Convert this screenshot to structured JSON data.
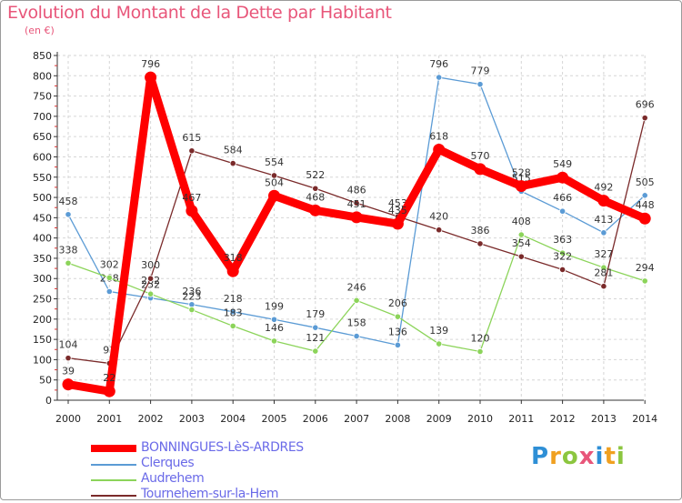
{
  "header": {
    "title": "Evolution du Montant de la Dette par Habitant",
    "unit": "(en €)"
  },
  "logo": {
    "text": "Proxiti"
  },
  "colors": {
    "title": "#e8567a",
    "grid": "#d6d6d6",
    "axis": "#333333",
    "tick_red": "#d93030",
    "legend_text": "#6a6ae8"
  },
  "chart_data": {
    "type": "line",
    "categories": [
      "2000",
      "2001",
      "2002",
      "2003",
      "2004",
      "2005",
      "2006",
      "2007",
      "2008",
      "2009",
      "2010",
      "2011",
      "2012",
      "2013",
      "2014"
    ],
    "ylim": [
      0,
      850
    ],
    "yticks": [
      0,
      50,
      100,
      150,
      200,
      250,
      300,
      350,
      400,
      450,
      500,
      550,
      600,
      650,
      700,
      750,
      800,
      850
    ],
    "grid": true,
    "legend_position": "bottom",
    "series": [
      {
        "name": "BONNINGUES-LèS-ARDRES",
        "color": "#ff0000",
        "width": 9,
        "values": [
          39,
          22,
          796,
          467,
          318,
          504,
          468,
          451,
          435,
          618,
          570,
          528,
          549,
          492,
          448
        ],
        "labels": [
          "39",
          "22",
          "796",
          "467",
          "318",
          "504",
          "468",
          "451",
          "435",
          "618",
          "570",
          "528",
          "549",
          "492",
          "448"
        ]
      },
      {
        "name": "Clerques",
        "color": "#5b9bd5",
        "width": 1.3,
        "values": [
          458,
          268,
          252,
          236,
          218,
          199,
          179,
          158,
          136,
          796,
          779,
          515,
          466,
          413,
          505
        ],
        "labels": [
          "458",
          "268",
          "252",
          "236",
          "218",
          "199",
          "179",
          "158",
          "136",
          "796",
          "779",
          "515",
          "466",
          "413",
          "505"
        ]
      },
      {
        "name": "Audrehem",
        "color": "#8cd45a",
        "width": 1.3,
        "values": [
          338,
          302,
          262,
          223,
          183,
          146,
          121,
          246,
          206,
          139,
          120,
          408,
          363,
          327,
          294
        ],
        "labels": [
          "338",
          "302",
          "262",
          "223",
          "183",
          "146",
          "121",
          "246",
          "206",
          "139",
          "120",
          "408",
          "363",
          "327",
          "294"
        ]
      },
      {
        "name": "Tournehem-sur-la-Hem",
        "color": "#7a2a2a",
        "width": 1.3,
        "values": [
          104,
          91,
          300,
          615,
          584,
          554,
          522,
          486,
          453,
          420,
          386,
          354,
          322,
          281,
          696
        ],
        "labels": [
          "104",
          "91",
          "300",
          "615",
          "584",
          "554",
          "522",
          "486",
          "453",
          "420",
          "386",
          "354",
          "322",
          "281",
          "696"
        ]
      }
    ]
  }
}
